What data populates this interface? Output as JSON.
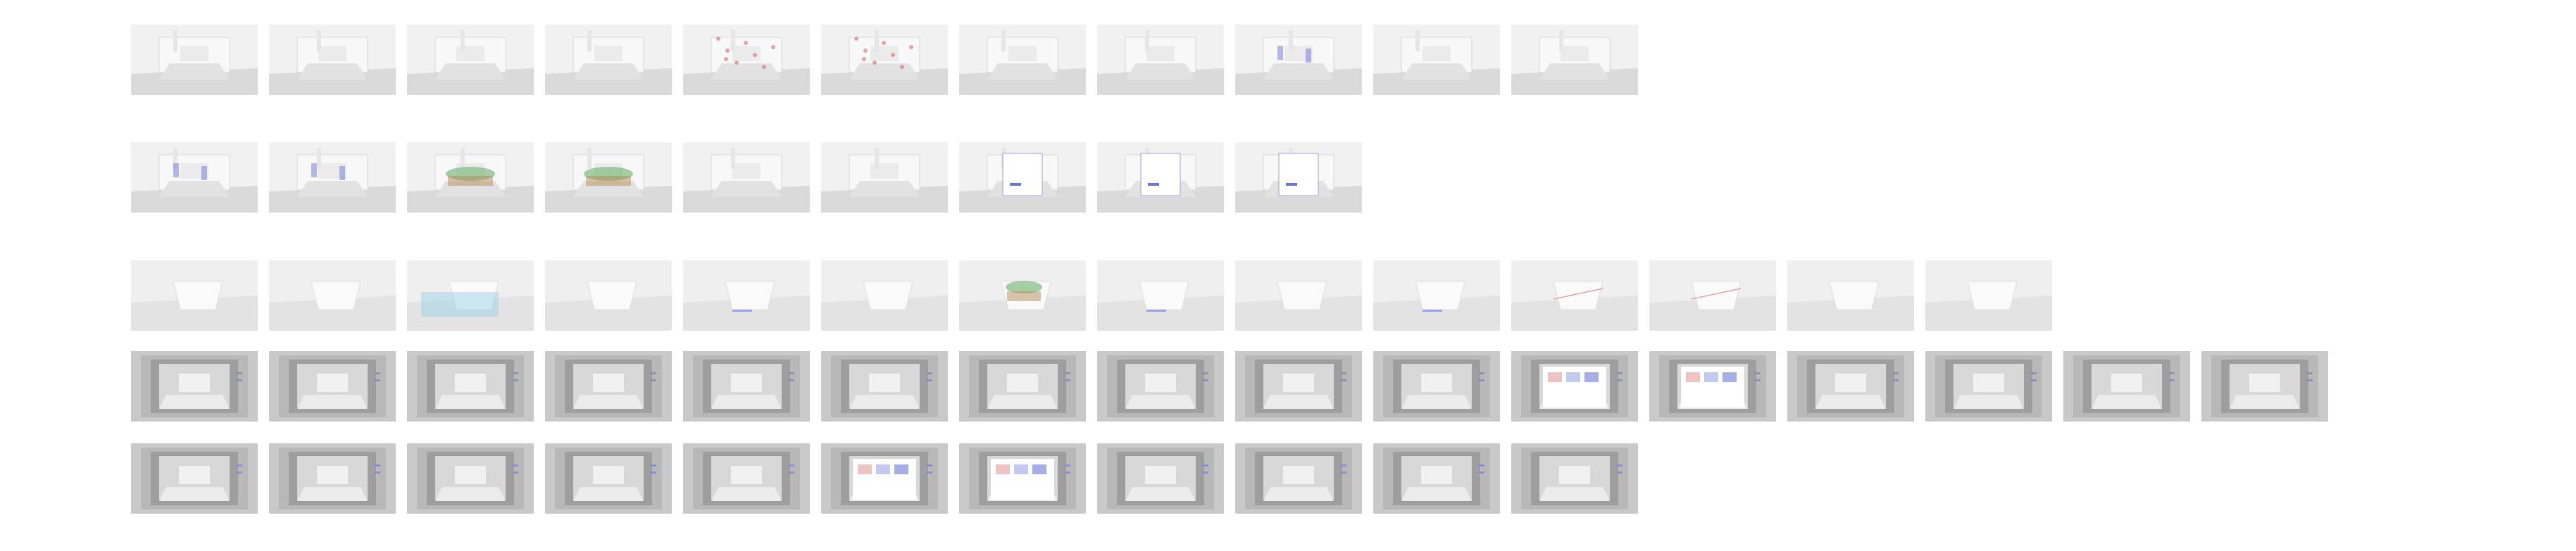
{
  "board": {
    "rows": [
      {
        "id": "row-1",
        "kind": "light",
        "count": 11
      },
      {
        "id": "row-2",
        "kind": "light",
        "count": 9
      },
      {
        "id": "row-3",
        "kind": "mid",
        "count": 14
      },
      {
        "id": "row-4",
        "kind": "dark",
        "count": 16
      },
      {
        "id": "row-5",
        "kind": "dark",
        "count": 11
      }
    ]
  },
  "colors": {
    "page_bg": "#ffffff",
    "thumb_light": "#efefef",
    "thumb_mid": "#e4e4e4",
    "thumb_dark": "#cfcfcf",
    "accent_blue": "#6a78d8",
    "accent_red": "#d26a6a",
    "accent_green": "#6ab06a",
    "accent_brown": "#b58a5a"
  }
}
